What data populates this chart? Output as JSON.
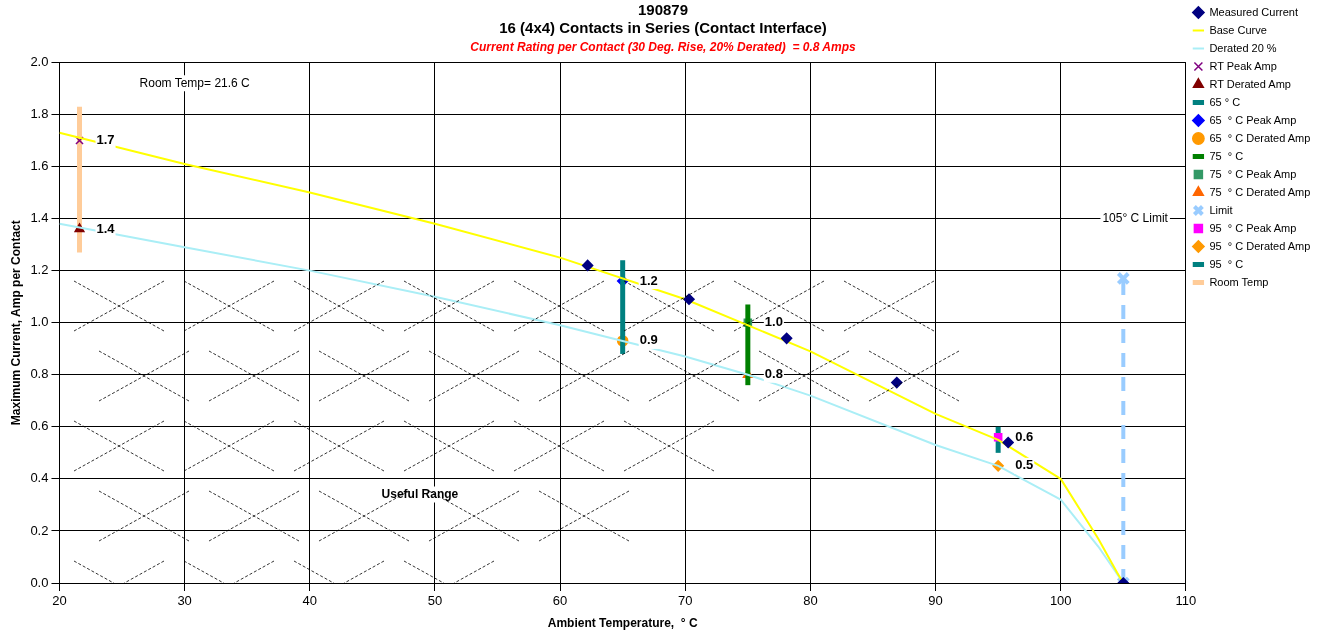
{
  "chart_data": {
    "type": "line",
    "title": [
      "190879",
      "16 (4x4) Contacts in Series (Contact Interface)"
    ],
    "subtitle": "Current Rating per Contact (30 Deg. Rise, 20% Derated)  = 0.8 Amps",
    "xlabel": "Ambient Temperature,  ° C",
    "ylabel": "Maximum Current, Amp per Contact",
    "xlim": [
      20,
      110
    ],
    "xticks": [
      20,
      30,
      40,
      50,
      60,
      70,
      80,
      90,
      100,
      110
    ],
    "ylim": [
      0,
      2
    ],
    "yticks": [
      {
        "value": 0,
        "label": "0.0"
      },
      {
        "value": 0.2,
        "label": "0.2"
      },
      {
        "value": 0.4,
        "label": "0.4"
      },
      {
        "value": 0.6,
        "label": "0.6"
      },
      {
        "value": 0.8,
        "label": "0.8"
      },
      {
        "value": 1,
        "label": "1.0"
      },
      {
        "value": 1.2,
        "label": "1.2"
      },
      {
        "value": 1.4,
        "label": "1.4"
      },
      {
        "value": 1.6,
        "label": "1.6"
      },
      {
        "value": 1.8,
        "label": "1.8"
      },
      {
        "value": 2,
        "label": "2.0"
      }
    ],
    "grid": true,
    "legend": "right",
    "series": [
      {
        "name": "Base Curve",
        "color": "#ffff00",
        "marker": "none",
        "x": [
          20,
          30,
          40,
          50,
          60,
          70,
          80,
          90,
          95,
          100,
          103,
          104.5,
          105
        ],
        "values": [
          1.73,
          1.61,
          1.5,
          1.38,
          1.25,
          1.09,
          0.89,
          0.65,
          0.55,
          0.4,
          0.17,
          0.04,
          0
        ]
      },
      {
        "name": "Derated 20 %",
        "color": "#aaeef6",
        "marker": "none",
        "x": [
          20,
          30,
          40,
          50,
          60,
          65,
          70,
          75,
          80,
          90,
          95,
          100,
          103,
          105
        ],
        "values": [
          1.38,
          1.29,
          1.2,
          1.1,
          0.99,
          0.93,
          0.87,
          0.8,
          0.72,
          0.53,
          0.45,
          0.32,
          0.14,
          0
        ]
      },
      {
        "name": "RT Peak Amp",
        "type": "scatter",
        "color": "#800080",
        "marker": "cross",
        "x": [
          21.6
        ],
        "values": [
          1.7
        ],
        "value_labels": [
          "1.7"
        ]
      },
      {
        "name": "RT Derated Amp",
        "type": "scatter",
        "color": "#800000",
        "marker": "triangle",
        "x": [
          21.6
        ],
        "values": [
          1.36
        ],
        "value_labels": [
          "1.4"
        ]
      },
      {
        "name": "Measured Current",
        "type": "scatter",
        "color": "#000080",
        "marker": "diamond",
        "x": [
          62.2,
          70.3,
          78.1,
          86.9,
          95.8,
          105
        ],
        "values": [
          1.22,
          1.09,
          0.94,
          0.77,
          0.54,
          0
        ]
      },
      {
        "name": "65 ° C",
        "type": "line",
        "color": "#008080",
        "marker": "none",
        "x": [
          65,
          65
        ],
        "values": [
          0.88,
          1.24
        ]
      },
      {
        "name": "65  ° C Peak Amp",
        "type": "scatter",
        "color": "#0000ff",
        "marker": "diamond",
        "x": [
          65
        ],
        "values": [
          1.16
        ],
        "value_labels": [
          "1.2"
        ]
      },
      {
        "name": "65  ° C Derated Amp",
        "type": "scatter",
        "color": "#ff9900",
        "marker": "circle",
        "x": [
          65
        ],
        "values": [
          0.93
        ],
        "value_labels": [
          "0.9"
        ]
      },
      {
        "name": "75  ° C",
        "type": "line",
        "color": "#008000",
        "marker": "none",
        "x": [
          75,
          75
        ],
        "values": [
          0.76,
          1.07
        ]
      },
      {
        "name": "75  ° C Peak Amp",
        "type": "scatter",
        "color": "#339966",
        "marker": "square",
        "x": [
          75
        ],
        "values": [
          1.0
        ],
        "value_labels": [
          "1.0"
        ]
      },
      {
        "name": "75  ° C Derated Amp",
        "type": "scatter",
        "color": "#ff6600",
        "marker": "triangle",
        "x": [
          75
        ],
        "values": [
          0.8
        ],
        "value_labels": [
          "0.8"
        ]
      },
      {
        "name": "Limit",
        "type": "line",
        "color": "#99ccff",
        "marker": "cross",
        "line_style": "dashed",
        "x": [
          105,
          105
        ],
        "values": [
          0,
          1.17
        ]
      },
      {
        "name": "95  ° C Peak Amp",
        "type": "scatter",
        "color": "#ff00ff",
        "marker": "square",
        "x": [
          95
        ],
        "values": [
          0.56
        ],
        "value_labels": [
          "0.6"
        ]
      },
      {
        "name": "95  ° C Derated Amp",
        "type": "scatter",
        "color": "#ff9900",
        "marker": "diamond",
        "x": [
          95
        ],
        "values": [
          0.45
        ],
        "value_labels": [
          "0.5"
        ]
      },
      {
        "name": "95  ° C",
        "type": "line",
        "color": "#008080",
        "marker": "none",
        "x": [
          95,
          95
        ],
        "values": [
          0.5,
          0.6
        ]
      },
      {
        "name": "Room Temp",
        "type": "line",
        "color": "#ffcc99",
        "marker": "none",
        "x": [
          21.6,
          21.6
        ],
        "values": [
          1.27,
          1.83
        ]
      }
    ],
    "annotations": [
      "Room Temp= 21.6 C",
      "105° C Limit",
      "Useful Range"
    ]
  }
}
